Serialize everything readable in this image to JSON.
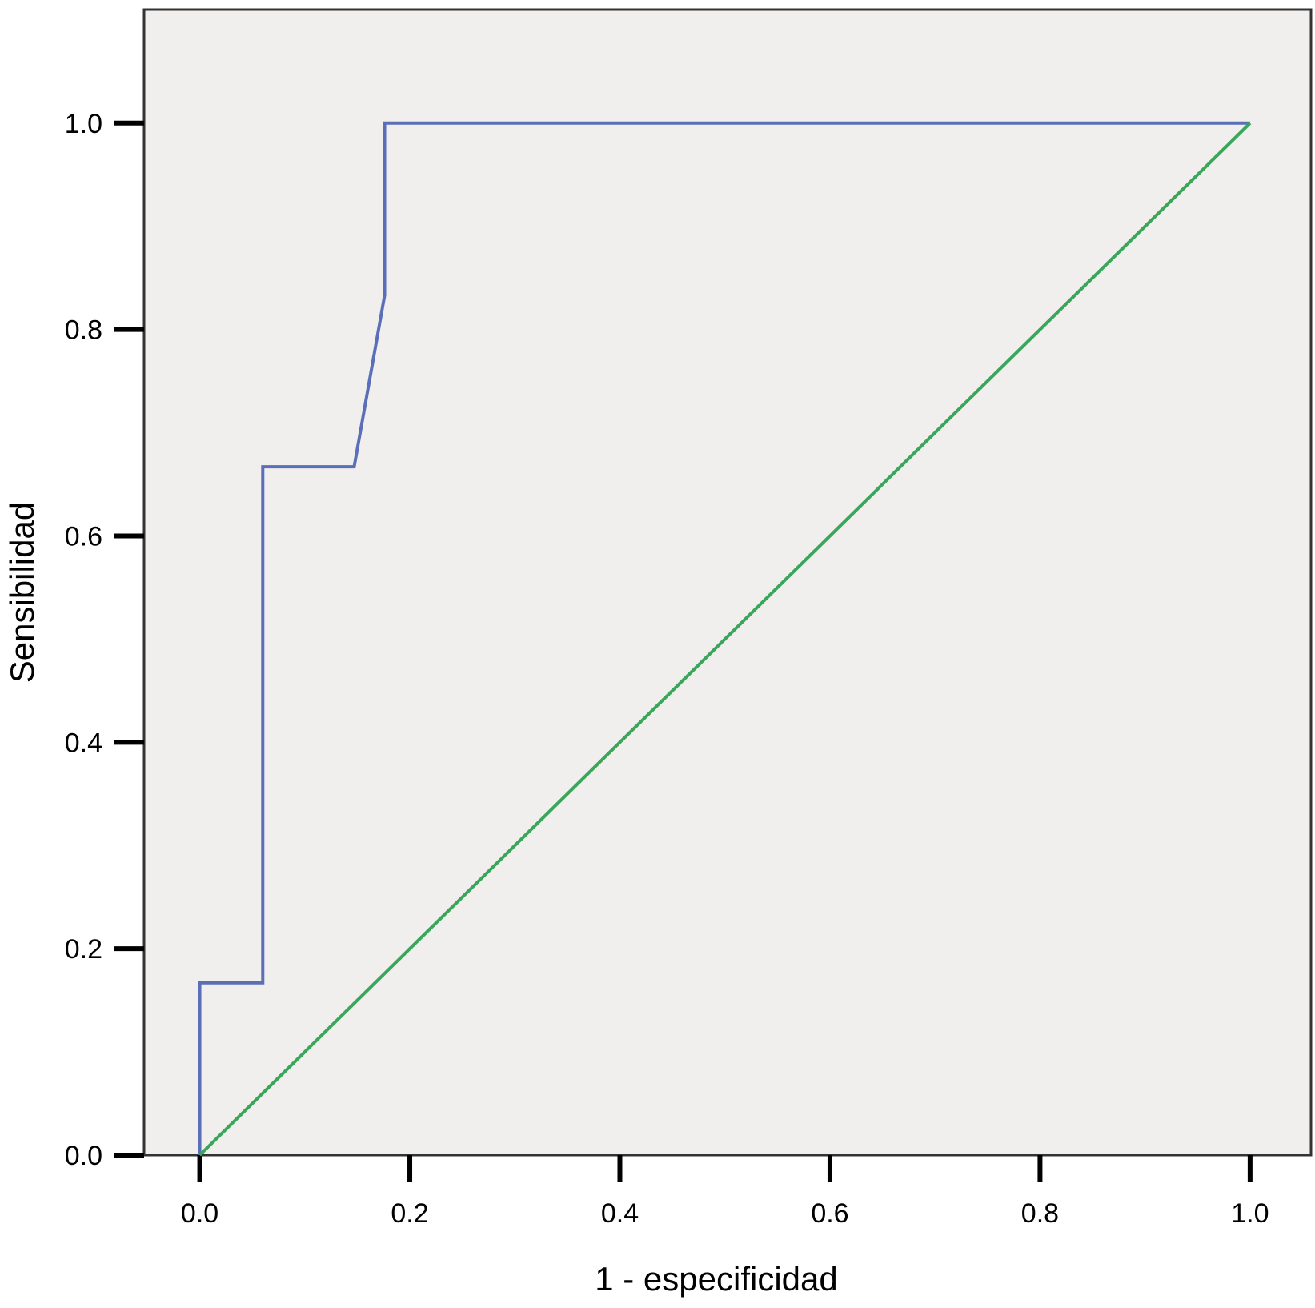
{
  "chart_data": {
    "type": "line",
    "title": "",
    "xlabel": "1 - especificidad",
    "ylabel": "Sensibilidad",
    "xlim": [
      -0.053,
      1.058
    ],
    "ylim": [
      0.0,
      1.11
    ],
    "xticks": [
      "0.0",
      "0.2",
      "0.4",
      "0.6",
      "0.8",
      "1.0"
    ],
    "yticks": [
      "0.0",
      "0.2",
      "0.4",
      "0.6",
      "0.8",
      "1.0"
    ],
    "grid": false,
    "legend": "none",
    "background_color": "#f0efee",
    "series": [
      {
        "color": "#5b6fb8",
        "x": [
          0.0,
          0.0,
          0.06,
          0.06,
          0.147,
          0.176,
          0.176,
          1.0
        ],
        "y": [
          0.0,
          0.167,
          0.167,
          0.667,
          0.667,
          0.833,
          1.0,
          1.0
        ]
      },
      {
        "color": "#3aa65a",
        "x": [
          0.0,
          1.0
        ],
        "y": [
          0.0,
          1.0
        ]
      }
    ]
  }
}
